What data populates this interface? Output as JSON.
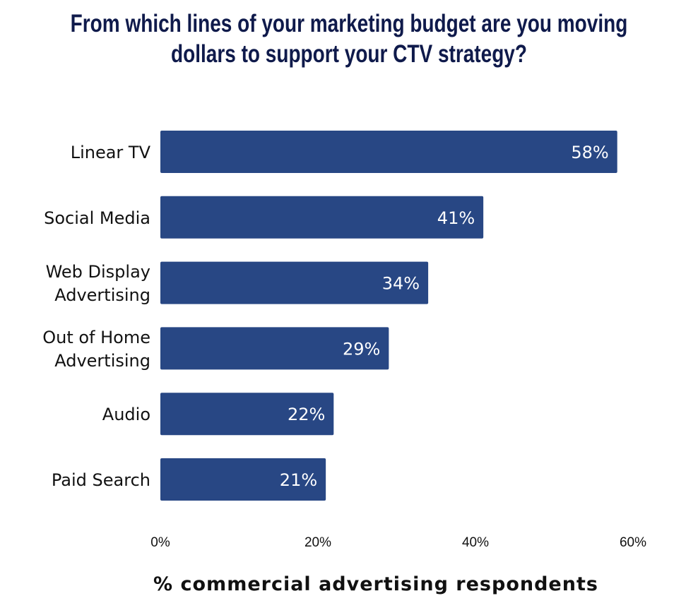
{
  "chart_data": {
    "type": "bar",
    "orientation": "horizontal",
    "title_lines": [
      "From which lines of your marketing budget are you moving",
      "dollars to support your CTV strategy?"
    ],
    "categories": [
      [
        "Linear TV"
      ],
      [
        "Social Media"
      ],
      [
        "Web Display",
        "Advertising"
      ],
      [
        "Out of Home",
        "Advertising"
      ],
      [
        "Audio"
      ],
      [
        "Paid Search"
      ]
    ],
    "values": [
      58,
      41,
      34,
      29,
      22,
      21
    ],
    "value_labels": [
      "58%",
      "41%",
      "34%",
      "29%",
      "22%",
      "21%"
    ],
    "xlabel": "% commercial advertising respondents",
    "xlim": [
      0,
      60
    ],
    "xticks": [
      0,
      20,
      40,
      60
    ],
    "xtick_labels": [
      "0%",
      "20%",
      "40%",
      "60%"
    ],
    "grid": false,
    "bar_color": "#284784",
    "title_color": "#0f1a4b"
  }
}
